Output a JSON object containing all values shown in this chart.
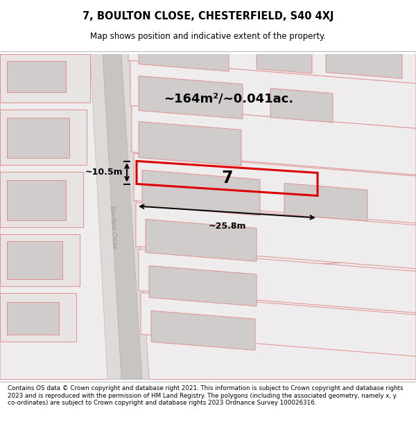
{
  "title_line1": "7, BOULTON CLOSE, CHESTERFIELD, S40 4XJ",
  "title_line2": "Map shows position and indicative extent of the property.",
  "footer_text": "Contains OS data © Crown copyright and database right 2021. This information is subject to Crown copyright and database rights 2023 and is reproduced with the permission of HM Land Registry. The polygons (including the associated geometry, namely x, y co-ordinates) are subject to Crown copyright and database rights 2023 Ordnance Survey 100026316.",
  "area_label": "~164m²/~0.041ac.",
  "width_label": "~25.8m",
  "height_label": "~10.5m",
  "plot_number": "7",
  "road_label": "Boulton Close",
  "map_bg": "#ede9e9",
  "road_fill": "#d4d0d0",
  "building_fill": "#d0cccc",
  "outline_color": "#e09090",
  "highlight_color": "#dd0000",
  "white": "#ffffff"
}
